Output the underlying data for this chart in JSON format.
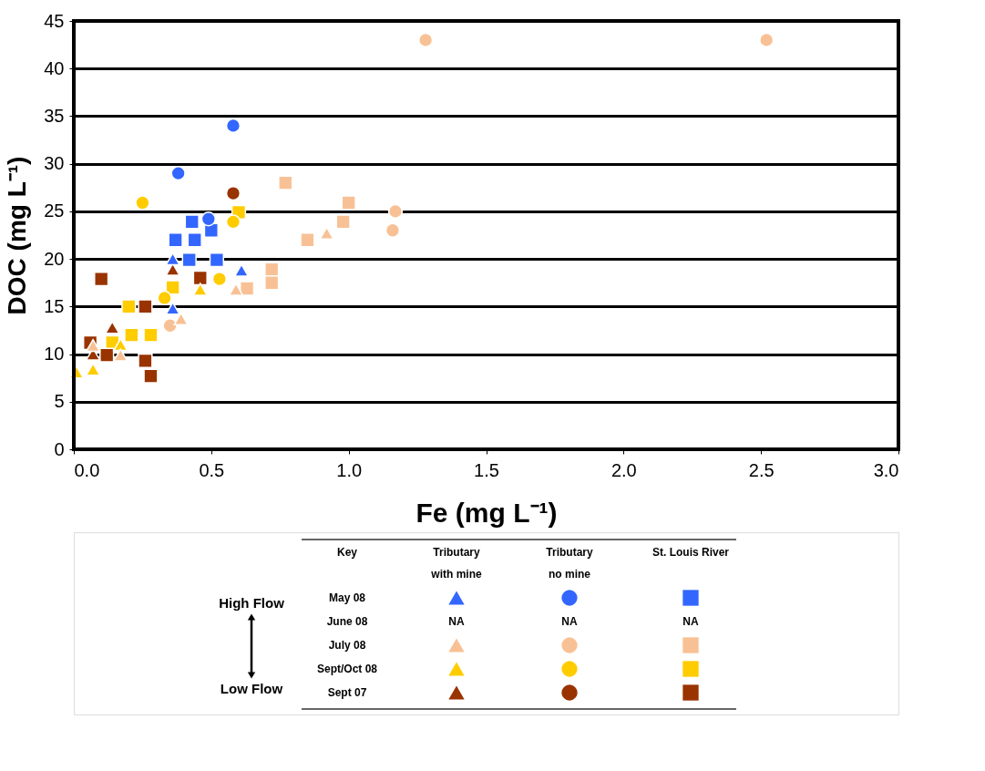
{
  "chart_data": {
    "type": "scatter",
    "xlabel": "Fe (mg L⁻¹)",
    "ylabel": "DOC (mg L⁻¹)",
    "xlim": [
      0,
      3
    ],
    "ylim": [
      0,
      45
    ],
    "xticks": [
      {
        "value": 0,
        "label": "0.0"
      },
      {
        "value": 0.5,
        "label": "0.5"
      },
      {
        "value": 1,
        "label": "1.0"
      },
      {
        "value": 1.5,
        "label": "1.5"
      },
      {
        "value": 2,
        "label": "2.0"
      },
      {
        "value": 2.5,
        "label": "2.5"
      },
      {
        "value": 3,
        "label": "3.0"
      }
    ],
    "yticks": [
      0,
      5,
      10,
      15,
      20,
      25,
      30,
      35,
      40,
      45
    ],
    "grid": "y",
    "legend": false,
    "series": [
      {
        "color": "#3366ff",
        "marker": "triangle",
        "x": [
          0.61,
          0.36,
          0.36
        ],
        "values": [
          18.8,
          20,
          14.8
        ]
      },
      {
        "color": "#3366ff",
        "marker": "circle",
        "x": [
          0.58,
          0.38,
          0.49
        ],
        "values": [
          34,
          29,
          24.2
        ]
      },
      {
        "color": "#3366ff",
        "marker": "square",
        "x": [
          0.43,
          0.5,
          0.37,
          0.44,
          0.42,
          0.52
        ],
        "values": [
          23.9,
          23,
          22,
          22,
          19.9,
          19.9
        ]
      },
      {
        "color": "#f8c195",
        "marker": "triangle",
        "x": [
          0.92,
          0.59,
          0.39,
          0.07,
          0.17
        ],
        "values": [
          22.7,
          16.8,
          13.7,
          10.9,
          9.9
        ]
      },
      {
        "color": "#f8c195",
        "marker": "circle",
        "x": [
          1.28,
          2.52,
          1.17,
          1.16,
          0.35
        ],
        "values": [
          43,
          43,
          25,
          23,
          13
        ]
      },
      {
        "color": "#f8c195",
        "marker": "square",
        "x": [
          0.77,
          1.0,
          0.98,
          0.85,
          0.72,
          0.72,
          0.63
        ],
        "values": [
          28,
          25.9,
          23.9,
          22,
          18.9,
          17.5,
          16.9
        ]
      },
      {
        "color": "#ffcc00",
        "marker": "triangle",
        "x": [
          0.46,
          0.07,
          0.01,
          0.17
        ],
        "values": [
          16.8,
          8.4,
          8.1,
          11
        ]
      },
      {
        "color": "#ffcc00",
        "marker": "circle",
        "x": [
          0.25,
          0.58,
          0.53,
          0.33
        ],
        "values": [
          25.9,
          23.9,
          17.9,
          15.9
        ]
      },
      {
        "color": "#ffcc00",
        "marker": "square",
        "x": [
          0.6,
          0.36,
          0.2,
          0.21,
          0.28,
          0.14
        ],
        "values": [
          24.9,
          17,
          15,
          12,
          12,
          11.2
        ]
      },
      {
        "color": "#993300",
        "marker": "triangle",
        "x": [
          0.36,
          0.14,
          0.07
        ],
        "values": [
          18.9,
          12.8,
          10
        ]
      },
      {
        "color": "#993300",
        "marker": "circle",
        "x": [
          0.58
        ],
        "values": [
          26.9
        ]
      },
      {
        "color": "#993300",
        "marker": "square",
        "x": [
          0.46,
          0.1,
          0.26,
          0.26,
          0.28,
          0.06,
          0.12
        ],
        "values": [
          18,
          17.9,
          15,
          9.3,
          7.7,
          11.2,
          9.9
        ]
      }
    ],
    "annotations": [
      "Key",
      "Tributary",
      "with mine",
      "Tributary",
      "no mine",
      "St. Louis River",
      "High Flow",
      "Low Flow",
      "May 08",
      "June 08",
      "NA",
      "NA",
      "NA",
      "July 08",
      "Sept/Oct 08",
      "Sept 07"
    ]
  }
}
